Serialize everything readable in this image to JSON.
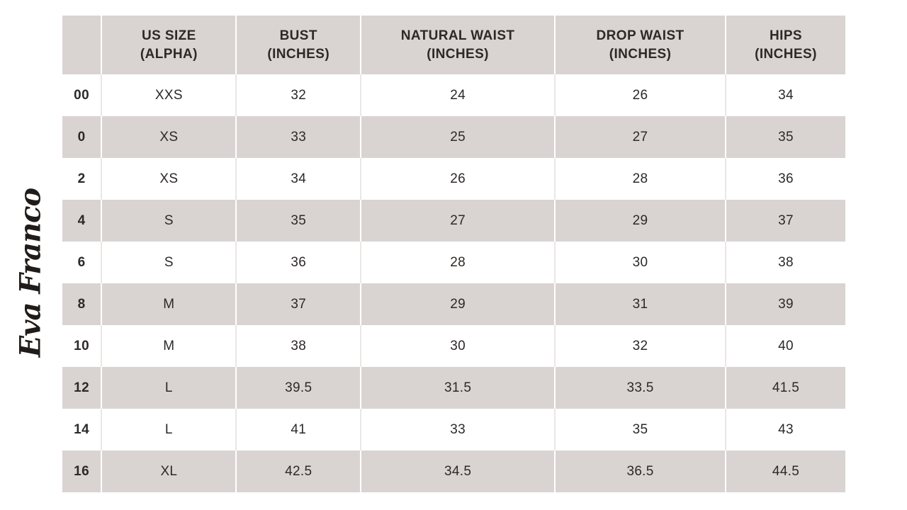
{
  "brand": {
    "logo_text": "Eva Franco"
  },
  "chart_data": {
    "type": "table",
    "columns": [
      "",
      "US SIZE\n(ALPHA)",
      "BUST\n(INCHES)",
      "NATURAL WAIST\n(INCHES)",
      "DROP WAIST\n(INCHES)",
      "HIPS\n(INCHES)"
    ],
    "rows": [
      [
        "00",
        "XXS",
        "32",
        "24",
        "26",
        "34"
      ],
      [
        "0",
        "XS",
        "33",
        "25",
        "27",
        "35"
      ],
      [
        "2",
        "XS",
        "34",
        "26",
        "28",
        "36"
      ],
      [
        "4",
        "S",
        "35",
        "27",
        "29",
        "37"
      ],
      [
        "6",
        "S",
        "36",
        "28",
        "30",
        "38"
      ],
      [
        "8",
        "M",
        "37",
        "29",
        "31",
        "39"
      ],
      [
        "10",
        "M",
        "38",
        "30",
        "32",
        "40"
      ],
      [
        "12",
        "L",
        "39.5",
        "31.5",
        "33.5",
        "41.5"
      ],
      [
        "14",
        "L",
        "41",
        "33",
        "35",
        "43"
      ],
      [
        "16",
        "XL",
        "42.5",
        "34.5",
        "36.5",
        "44.5"
      ]
    ],
    "layout": {
      "shaded_rows": [
        "header",
        "0",
        "4",
        "8",
        "12",
        "16"
      ],
      "grid": "white separators inside shaded rows, light-gray separators inside white rows"
    }
  },
  "colors": {
    "row_shade": "#d9d4d2",
    "text": "#2d2927",
    "logo": "#1f1c1a",
    "background": "#ffffff",
    "white_row_separator": "#eae7e5"
  }
}
